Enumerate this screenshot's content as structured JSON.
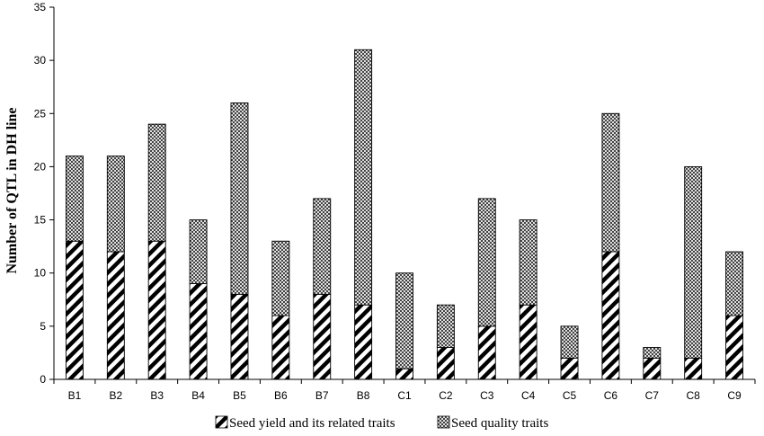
{
  "chart_data": {
    "type": "bar",
    "stacked": true,
    "title": "",
    "xlabel": "",
    "ylabel": "Number of QTL in DH line",
    "ylim": [
      0,
      35
    ],
    "yticks": [
      0,
      5,
      10,
      15,
      20,
      25,
      30,
      35
    ],
    "grid": false,
    "legend_position": "bottom",
    "categories": [
      "B1",
      "B2",
      "B3",
      "B4",
      "B5",
      "B6",
      "B7",
      "B8",
      "C1",
      "C2",
      "C3",
      "C4",
      "C5",
      "C6",
      "C7",
      "C8",
      "C9"
    ],
    "series": [
      {
        "name": "Seed yield and its related traits",
        "pattern": "diagonal-stripes",
        "values": [
          13,
          12,
          13,
          9,
          8,
          6,
          8,
          7,
          1,
          3,
          5,
          7,
          2,
          12,
          2,
          2,
          6
        ]
      },
      {
        "name": "Seed quality traits",
        "pattern": "crosshatch",
        "values": [
          8,
          9,
          11,
          6,
          18,
          7,
          9,
          24,
          9,
          4,
          12,
          8,
          3,
          13,
          1,
          18,
          6
        ]
      }
    ],
    "colors": {
      "ink": "#000000",
      "background": "#ffffff"
    }
  }
}
